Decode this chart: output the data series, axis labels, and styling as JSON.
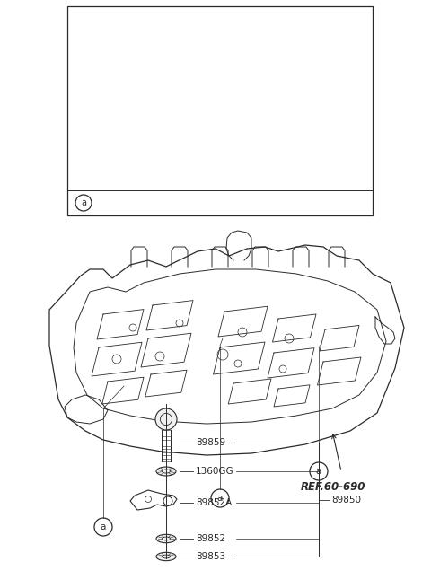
{
  "bg_color": "#ffffff",
  "line_color": "#2a2a2a",
  "text_color": "#2a2a2a",
  "fig_width": 4.8,
  "fig_height": 6.55,
  "dpi": 100,
  "ref_label": "REF.60-690",
  "group_label": "89850",
  "parts": [
    {
      "id": "89859",
      "label": "89859"
    },
    {
      "id": "1360GG",
      "label": "1360GG"
    },
    {
      "id": "89852A",
      "label": "89852A"
    },
    {
      "id": "89852",
      "label": "89852"
    },
    {
      "id": "89853",
      "label": "89853"
    }
  ]
}
